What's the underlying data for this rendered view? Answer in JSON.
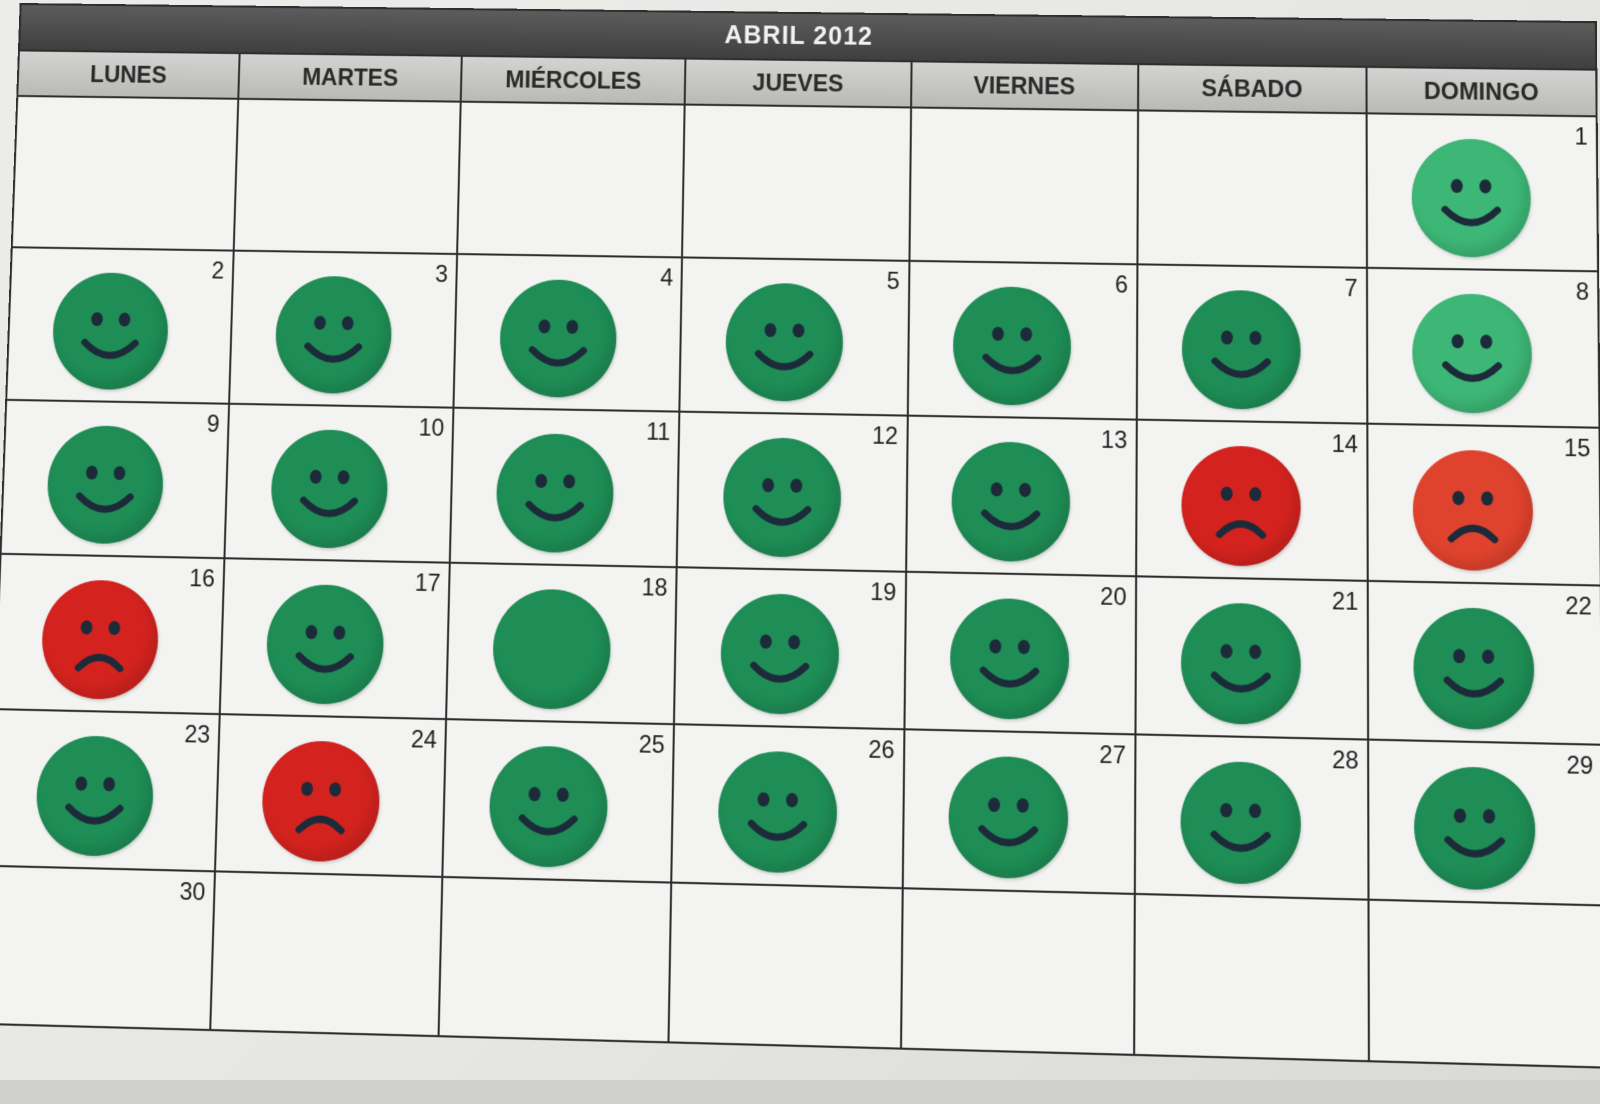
{
  "calendar": {
    "title": "ABRIL  2012",
    "weekdays": [
      "LUNES",
      "MARTES",
      "MIÉRCOLES",
      "JUEVES",
      "VIERNES",
      "SÁBADO",
      "DOMINGO"
    ],
    "colors": {
      "green": "#1e8e56",
      "green_light": "#3db776",
      "red": "#d4231f",
      "red_orange": "#e0432d",
      "ink": "#1d2a3a"
    },
    "weeks": [
      [
        {
          "day": ""
        },
        {
          "day": ""
        },
        {
          "day": ""
        },
        {
          "day": ""
        },
        {
          "day": ""
        },
        {
          "day": ""
        },
        {
          "day": "1",
          "mood": "happy",
          "shade": "green_light"
        }
      ],
      [
        {
          "day": "2",
          "mood": "happy",
          "shade": "green"
        },
        {
          "day": "3",
          "mood": "happy",
          "shade": "green"
        },
        {
          "day": "4",
          "mood": "happy",
          "shade": "green"
        },
        {
          "day": "5",
          "mood": "happy",
          "shade": "green"
        },
        {
          "day": "6",
          "mood": "happy",
          "shade": "green"
        },
        {
          "day": "7",
          "mood": "happy",
          "shade": "green"
        },
        {
          "day": "8",
          "mood": "happy",
          "shade": "green_light"
        }
      ],
      [
        {
          "day": "9",
          "mood": "happy",
          "shade": "green"
        },
        {
          "day": "10",
          "mood": "happy",
          "shade": "green"
        },
        {
          "day": "11",
          "mood": "happy",
          "shade": "green"
        },
        {
          "day": "12",
          "mood": "happy",
          "shade": "green"
        },
        {
          "day": "13",
          "mood": "happy",
          "shade": "green"
        },
        {
          "day": "14",
          "mood": "sad",
          "shade": "red"
        },
        {
          "day": "15",
          "mood": "sad",
          "shade": "red_orange"
        }
      ],
      [
        {
          "day": "16",
          "mood": "sad",
          "shade": "red"
        },
        {
          "day": "17",
          "mood": "happy",
          "shade": "green"
        },
        {
          "day": "18",
          "mood": "blank",
          "shade": "green"
        },
        {
          "day": "19",
          "mood": "happy",
          "shade": "green"
        },
        {
          "day": "20",
          "mood": "happy",
          "shade": "green"
        },
        {
          "day": "21",
          "mood": "happy",
          "shade": "green"
        },
        {
          "day": "22",
          "mood": "happy",
          "shade": "green"
        }
      ],
      [
        {
          "day": "23",
          "mood": "happy",
          "shade": "green"
        },
        {
          "day": "24",
          "mood": "sad",
          "shade": "red"
        },
        {
          "day": "25",
          "mood": "happy",
          "shade": "green"
        },
        {
          "day": "26",
          "mood": "happy",
          "shade": "green"
        },
        {
          "day": "27",
          "mood": "happy",
          "shade": "green"
        },
        {
          "day": "28",
          "mood": "happy",
          "shade": "green"
        },
        {
          "day": "29",
          "mood": "happy",
          "shade": "green"
        }
      ],
      [
        {
          "day": "30"
        },
        {
          "day": ""
        },
        {
          "day": ""
        },
        {
          "day": ""
        },
        {
          "day": ""
        },
        {
          "day": ""
        },
        {
          "day": ""
        }
      ]
    ]
  }
}
